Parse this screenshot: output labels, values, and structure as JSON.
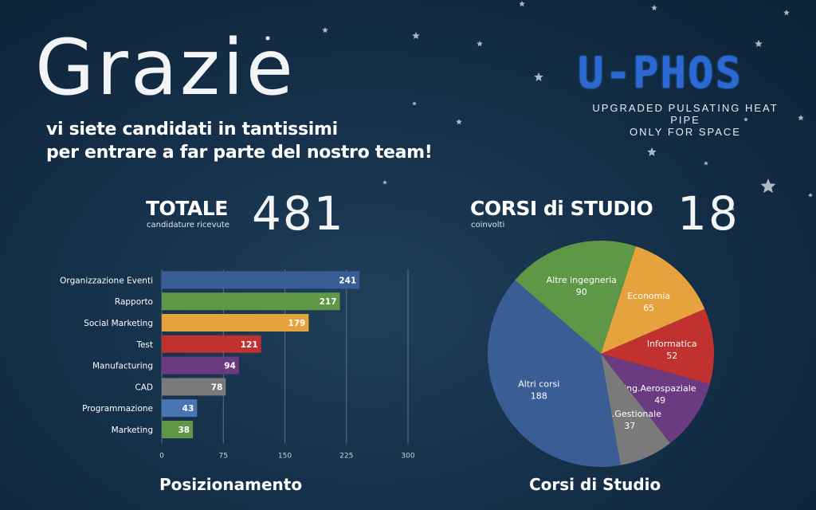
{
  "header": {
    "title": "Grazie",
    "subtitle_line1": "vi siete candidati in tantissimi",
    "subtitle_line2": "per entrare a far parte del nostro team!"
  },
  "logo": {
    "name": "U-PHOS",
    "tagline_line1": "UPGRADED PULSATING HEAT PIPE",
    "tagline_line2": "ONLY FOR SPACE"
  },
  "stats": {
    "total": {
      "label": "TOTALE",
      "sublabel": "candidature ricevute",
      "value": "481"
    },
    "courses": {
      "label": "CORSI di STUDIO",
      "sublabel": "coinvolti",
      "value": "18"
    }
  },
  "footer": {
    "bar_title": "Posizionamento",
    "pie_title": "Corsi di Studio"
  },
  "colors": {
    "blue": "#3a5d95",
    "green": "#5e9847",
    "orange": "#e6a23c",
    "red": "#c0312f",
    "purple": "#6c3a80",
    "gray": "#7a7a7a",
    "lightblue": "#4776b0"
  },
  "chart_data": [
    {
      "type": "bar",
      "orientation": "horizontal",
      "title": "Posizionamento",
      "categories": [
        "Organizzazione Eventi",
        "Rapporto",
        "Social Marketing",
        "Test",
        "Manufacturing",
        "CAD",
        "Programmazione",
        "Marketing"
      ],
      "values": [
        241,
        217,
        179,
        121,
        94,
        78,
        43,
        38
      ],
      "bar_colors": [
        "#3a5d95",
        "#5e9847",
        "#e6a23c",
        "#c0312f",
        "#6c3a80",
        "#7a7a7a",
        "#4776b0",
        "#5e9847"
      ],
      "xlim": [
        0,
        300
      ],
      "xticks": [
        0,
        75,
        150,
        225,
        300
      ],
      "grid": true,
      "data_labels": true
    },
    {
      "type": "pie",
      "title": "Corsi di Studio",
      "slices": [
        {
          "label": "Economia",
          "value": 65,
          "color": "#e6a23c"
        },
        {
          "label": "Informatica",
          "value": 52,
          "color": "#c0312f"
        },
        {
          "label": "Ing.Aerospaziale",
          "value": 49,
          "color": "#6c3a80"
        },
        {
          "label": "Ing.Gestionale",
          "value": 37,
          "color": "#7a7a7a"
        },
        {
          "label": "Altri corsi",
          "value": 188,
          "color": "#3a5d95"
        },
        {
          "label": "Altre ingegneria",
          "value": 90,
          "color": "#5e9847"
        }
      ],
      "start_angle_deg": 18
    }
  ]
}
